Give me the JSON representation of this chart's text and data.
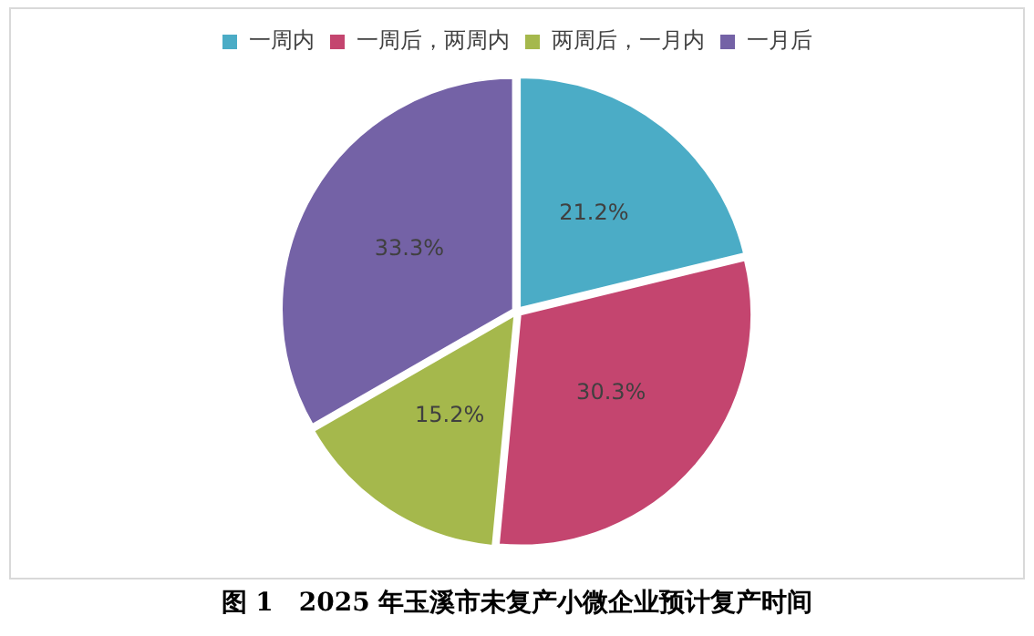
{
  "chart_data": {
    "type": "pie",
    "title": "图 1　2025 年玉溪市未复产小微企业预计复产时间",
    "categories": [
      "一周内",
      "一周后，两周内",
      "两周后，一月内",
      "一月后"
    ],
    "values": [
      21.2,
      30.3,
      15.2,
      33.3
    ],
    "value_labels": [
      "21.2%",
      "30.3%",
      "15.2%",
      "33.3%"
    ],
    "colors": [
      "#4bacc6",
      "#c4456f",
      "#a5b84c",
      "#7462a6"
    ],
    "legend": "top"
  }
}
